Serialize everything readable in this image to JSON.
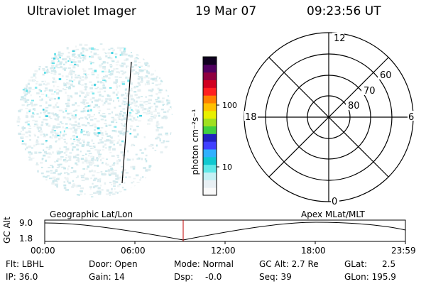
{
  "header": {
    "title": "Ultraviolet Imager",
    "date": "19 Mar 07",
    "time": "09:23:56 UT"
  },
  "colorbar": {
    "unit_label": "photon cm⁻²s⁻¹",
    "ticks": [
      "100",
      "10"
    ],
    "colors": [
      "#fafafa",
      "#e8f0f4",
      "#c4f0f4",
      "#60e8e8",
      "#10c8d0",
      "#30b0ff",
      "#4040ff",
      "#2020c0",
      "#40d040",
      "#a0e020",
      "#e8f000",
      "#ffc000",
      "#ff8000",
      "#ff2020",
      "#d00020",
      "#900040",
      "#500060",
      "#100020"
    ]
  },
  "polar_grid": {
    "lat_labels": [
      "80",
      "70",
      "60"
    ],
    "mlt_labels": {
      "top": "12",
      "bottom": "0",
      "left": "18",
      "right": "6"
    }
  },
  "orbit_plot": {
    "left_title": "Geographic Lat/Lon",
    "right_title": "Apex MLat/MLT",
    "y_axis_label": "GC Alt",
    "y_ticks": [
      "9.0",
      "1.8"
    ],
    "x_ticks": [
      "00:00",
      "06:00",
      "12:00",
      "18:00",
      "23:59"
    ]
  },
  "info": {
    "flt": "Flt: LBHL",
    "ip": "IP: 36.0",
    "door": "Door: Open",
    "gain": "Gain: 14",
    "mode": "Mode: Normal",
    "dsp_label": "Dsp:",
    "dsp_value": "-0.0",
    "gc_alt": "GC Alt: 2.7 Re",
    "seq": "Seq: 39",
    "glat_label": "GLat:",
    "glat_value": "2.5",
    "glon": "GLon: 195.9"
  }
}
